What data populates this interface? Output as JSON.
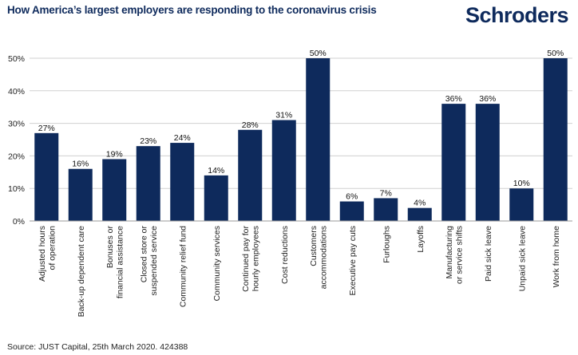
{
  "header": {
    "title": "How America’s largest employers are responding to the coronavirus crisis",
    "logo_text": "Schroders"
  },
  "footer": {
    "source": "Source: JUST Capital, 25th March 2020. 424388"
  },
  "colors": {
    "bar": "#0e2a5c",
    "grid": "#d0d0d0",
    "text": "#222222"
  },
  "chart_data": {
    "type": "bar",
    "title": "How America’s largest employers are responding to the coronavirus crisis",
    "xlabel": "",
    "ylabel": "",
    "ylim": [
      0,
      50
    ],
    "yticks": [
      0,
      10,
      20,
      30,
      40,
      50
    ],
    "ytick_labels": [
      "0%",
      "10%",
      "20%",
      "30%",
      "40%",
      "50%"
    ],
    "grid": true,
    "categories": [
      [
        "Adjusted hours",
        "of operation"
      ],
      [
        "Back-up dependent care"
      ],
      [
        "Bonuses or",
        "financial assistance"
      ],
      [
        "Closed store or",
        "suspended service"
      ],
      [
        "Community relief fund"
      ],
      [
        "Community services"
      ],
      [
        "Continued pay for",
        "hourly employees"
      ],
      [
        "Cost reductions"
      ],
      [
        "Customers",
        "accommodations"
      ],
      [
        "Executive pay cuts"
      ],
      [
        "Furloughs"
      ],
      [
        "Layoffs"
      ],
      [
        "Manufacturing",
        "or service shifts"
      ],
      [
        "Paid sick leave"
      ],
      [
        "Unpaid sick leave"
      ],
      [
        "Work from home"
      ]
    ],
    "values": [
      27,
      16,
      19,
      23,
      24,
      14,
      28,
      31,
      50,
      6,
      7,
      4,
      36,
      36,
      10,
      50
    ],
    "value_labels": [
      "27%",
      "16%",
      "19%",
      "23%",
      "24%",
      "14%",
      "28%",
      "31%",
      "50%",
      "6%",
      "7%",
      "4%",
      "36%",
      "36%",
      "10%",
      "50%"
    ]
  }
}
